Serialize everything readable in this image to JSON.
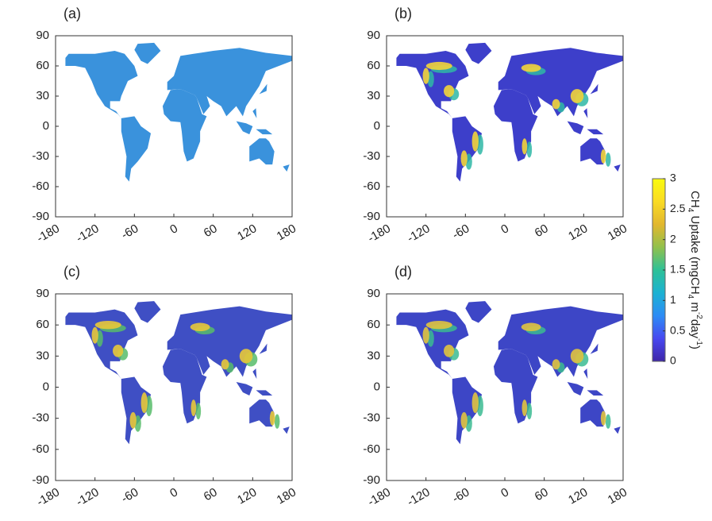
{
  "chart_data": [
    {
      "type": "map",
      "label": "(a)",
      "color": "#3a92dc",
      "hotspots": false,
      "xlim": [
        -180,
        180
      ],
      "ylim": [
        -90,
        90
      ],
      "xticks": [
        -180,
        -120,
        -60,
        0,
        60,
        120,
        180
      ],
      "yticks": [
        90,
        60,
        30,
        0,
        -30,
        -60,
        -90
      ]
    },
    {
      "type": "map",
      "label": "(b)",
      "color": "#3d3fca",
      "hotspots": true,
      "xlim": [
        -180,
        180
      ],
      "ylim": [
        -90,
        90
      ],
      "xticks": [
        -180,
        -120,
        -60,
        0,
        60,
        120,
        180
      ],
      "yticks": [
        90,
        60,
        30,
        0,
        -30,
        -60,
        -90
      ]
    },
    {
      "type": "map",
      "label": "(c)",
      "color": "#3f4fc4",
      "hotspots": true,
      "xlim": [
        -180,
        180
      ],
      "ylim": [
        -90,
        90
      ],
      "xticks": [
        -180,
        -120,
        -60,
        0,
        60,
        120,
        180
      ],
      "yticks": [
        90,
        60,
        30,
        0,
        -30,
        -60,
        -90
      ]
    },
    {
      "type": "map",
      "label": "(d)",
      "color": "#3d46c6",
      "hotspots": true,
      "xlim": [
        -180,
        180
      ],
      "ylim": [
        -90,
        90
      ],
      "xticks": [
        -180,
        -120,
        -60,
        0,
        60,
        120,
        180
      ],
      "yticks": [
        90,
        60,
        30,
        0,
        -30,
        -60,
        -90
      ]
    }
  ],
  "colorbar": {
    "label": [
      {
        "text": "CH"
      },
      {
        "text": "4",
        "sub": true
      },
      {
        "text": " Uptake (mgCH"
      },
      {
        "text": "4",
        "sub": true
      },
      {
        "text": " m"
      },
      {
        "text": "-2",
        "sup": true
      },
      {
        "text": "day"
      },
      {
        "text": "-1",
        "sup": true
      },
      {
        "text": ")"
      }
    ],
    "clim": [
      0,
      3
    ],
    "ticks": [
      0,
      0.5,
      1,
      1.5,
      2,
      2.5,
      3
    ],
    "colormap": [
      "#3e26a8",
      "#4748f0",
      "#2d8cf5",
      "#1cb2d2",
      "#2ec197",
      "#91c04c",
      "#e2b72e",
      "#fadb24",
      "#f9fb0e"
    ]
  }
}
